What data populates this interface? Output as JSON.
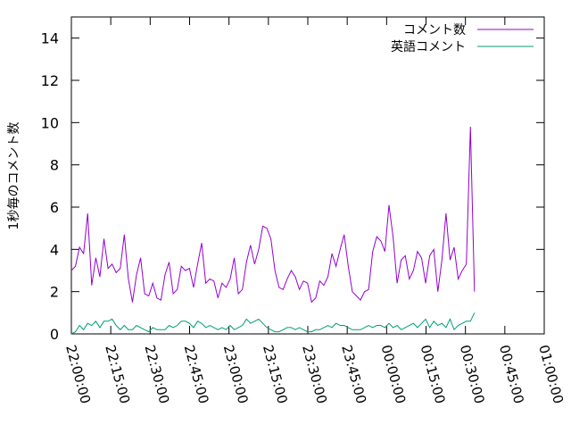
{
  "chart_data": {
    "type": "line",
    "title": "",
    "xlabel": "",
    "ylabel": "1秒毎のコメント数",
    "x_tick_labels": [
      "22:00:00",
      "22:15:00",
      "22:30:00",
      "22:45:00",
      "23:00:00",
      "23:15:00",
      "23:30:00",
      "23:45:00",
      "00:00:00",
      "00:15:00",
      "00:30:00",
      "00:45:00",
      "01:00:00"
    ],
    "y_tick_labels": [
      "0",
      "2",
      "4",
      "6",
      "8",
      "10",
      "12",
      "14"
    ],
    "xlim_minutes": [
      0,
      180
    ],
    "ylim": [
      0,
      15
    ],
    "grid": false,
    "legend_position": "top-right",
    "series": [
      {
        "name": "コメント数",
        "color": "#9400d3",
        "values": [
          [
            0,
            3.0
          ],
          [
            1.55,
            3.2
          ],
          [
            3.1,
            4.1
          ],
          [
            4.65,
            3.8
          ],
          [
            6.2,
            5.7
          ],
          [
            7.75,
            2.3
          ],
          [
            9.3,
            3.6
          ],
          [
            10.85,
            2.7
          ],
          [
            12.4,
            4.5
          ],
          [
            13.95,
            3.1
          ],
          [
            15.5,
            3.3
          ],
          [
            17.05,
            2.9
          ],
          [
            18.6,
            3.1
          ],
          [
            20.15,
            4.7
          ],
          [
            21.7,
            2.6
          ],
          [
            23.25,
            1.5
          ],
          [
            24.8,
            2.8
          ],
          [
            26.35,
            3.6
          ],
          [
            27.9,
            1.9
          ],
          [
            29.45,
            1.8
          ],
          [
            31.0,
            2.4
          ],
          [
            32.55,
            1.7
          ],
          [
            34.1,
            1.6
          ],
          [
            35.65,
            2.8
          ],
          [
            37.2,
            3.4
          ],
          [
            38.75,
            1.9
          ],
          [
            40.3,
            2.1
          ],
          [
            41.85,
            3.2
          ],
          [
            43.4,
            3.0
          ],
          [
            44.95,
            3.1
          ],
          [
            46.5,
            2.2
          ],
          [
            48.05,
            3.3
          ],
          [
            49.6,
            4.3
          ],
          [
            51.15,
            2.4
          ],
          [
            52.7,
            2.6
          ],
          [
            54.25,
            2.5
          ],
          [
            55.8,
            1.7
          ],
          [
            57.35,
            2.4
          ],
          [
            58.9,
            2.2
          ],
          [
            60.45,
            2.6
          ],
          [
            62.0,
            3.6
          ],
          [
            63.55,
            1.9
          ],
          [
            65.1,
            2.1
          ],
          [
            66.65,
            3.4
          ],
          [
            68.2,
            4.2
          ],
          [
            69.75,
            3.3
          ],
          [
            71.3,
            4.0
          ],
          [
            72.85,
            5.1
          ],
          [
            74.4,
            5.0
          ],
          [
            75.95,
            4.5
          ],
          [
            77.5,
            3.0
          ],
          [
            79.05,
            2.2
          ],
          [
            80.6,
            2.1
          ],
          [
            82.15,
            2.6
          ],
          [
            83.7,
            3.0
          ],
          [
            85.25,
            2.7
          ],
          [
            86.8,
            2.1
          ],
          [
            88.35,
            2.5
          ],
          [
            89.9,
            2.4
          ],
          [
            91.45,
            1.5
          ],
          [
            93.0,
            1.7
          ],
          [
            94.55,
            2.5
          ],
          [
            96.1,
            2.3
          ],
          [
            97.65,
            2.7
          ],
          [
            99.2,
            3.8
          ],
          [
            100.75,
            3.2
          ],
          [
            102.3,
            4.0
          ],
          [
            103.85,
            4.7
          ],
          [
            105.4,
            3.2
          ],
          [
            106.95,
            2.0
          ],
          [
            108.5,
            1.8
          ],
          [
            110.05,
            1.6
          ],
          [
            111.6,
            2.0
          ],
          [
            113.15,
            2.1
          ],
          [
            114.7,
            3.9
          ],
          [
            116.25,
            4.6
          ],
          [
            117.8,
            4.4
          ],
          [
            119.35,
            3.9
          ],
          [
            120.9,
            6.1
          ],
          [
            122.45,
            4.6
          ],
          [
            124.0,
            2.4
          ],
          [
            125.55,
            3.5
          ],
          [
            127.1,
            3.7
          ],
          [
            128.65,
            2.6
          ],
          [
            130.2,
            3.0
          ],
          [
            131.75,
            3.9
          ],
          [
            133.3,
            3.6
          ],
          [
            134.85,
            2.4
          ],
          [
            136.4,
            3.7
          ],
          [
            137.95,
            4.0
          ],
          [
            139.5,
            2.0
          ],
          [
            141.05,
            3.5
          ],
          [
            142.6,
            5.7
          ],
          [
            144.15,
            3.5
          ],
          [
            145.7,
            4.1
          ],
          [
            147.25,
            2.6
          ],
          [
            148.8,
            3.0
          ],
          [
            150.35,
            3.3
          ],
          [
            151.9,
            9.8
          ],
          [
            153.45,
            2.0
          ]
        ]
      },
      {
        "name": "英語コメント",
        "color": "#009e73",
        "values": [
          [
            0,
            0.0
          ],
          [
            1.55,
            0.1
          ],
          [
            3.1,
            0.4
          ],
          [
            4.65,
            0.2
          ],
          [
            6.2,
            0.5
          ],
          [
            7.75,
            0.4
          ],
          [
            9.3,
            0.6
          ],
          [
            10.85,
            0.3
          ],
          [
            12.4,
            0.6
          ],
          [
            13.95,
            0.6
          ],
          [
            15.5,
            0.7
          ],
          [
            17.05,
            0.4
          ],
          [
            18.6,
            0.2
          ],
          [
            20.15,
            0.4
          ],
          [
            21.7,
            0.2
          ],
          [
            23.25,
            0.2
          ],
          [
            24.8,
            0.4
          ],
          [
            26.35,
            0.3
          ],
          [
            27.9,
            0.2
          ],
          [
            29.45,
            0.1
          ],
          [
            31.0,
            0.3
          ],
          [
            32.55,
            0.2
          ],
          [
            34.1,
            0.2
          ],
          [
            35.65,
            0.2
          ],
          [
            37.2,
            0.4
          ],
          [
            38.75,
            0.3
          ],
          [
            40.3,
            0.4
          ],
          [
            41.85,
            0.6
          ],
          [
            43.4,
            0.6
          ],
          [
            44.95,
            0.5
          ],
          [
            46.5,
            0.3
          ],
          [
            48.05,
            0.6
          ],
          [
            49.6,
            0.5
          ],
          [
            51.15,
            0.3
          ],
          [
            52.7,
            0.4
          ],
          [
            54.25,
            0.3
          ],
          [
            55.8,
            0.2
          ],
          [
            57.35,
            0.3
          ],
          [
            58.9,
            0.2
          ],
          [
            60.45,
            0.4
          ],
          [
            62.0,
            0.2
          ],
          [
            63.55,
            0.3
          ],
          [
            65.1,
            0.4
          ],
          [
            66.65,
            0.7
          ],
          [
            68.2,
            0.5
          ],
          [
            69.75,
            0.6
          ],
          [
            71.3,
            0.7
          ],
          [
            72.85,
            0.5
          ],
          [
            74.4,
            0.3
          ],
          [
            75.95,
            0.2
          ],
          [
            77.5,
            0.1
          ],
          [
            79.05,
            0.1
          ],
          [
            80.6,
            0.2
          ],
          [
            82.15,
            0.3
          ],
          [
            83.7,
            0.3
          ],
          [
            85.25,
            0.2
          ],
          [
            86.8,
            0.3
          ],
          [
            88.35,
            0.2
          ],
          [
            89.9,
            0.1
          ],
          [
            91.45,
            0.1
          ],
          [
            93.0,
            0.2
          ],
          [
            94.55,
            0.2
          ],
          [
            96.1,
            0.3
          ],
          [
            97.65,
            0.4
          ],
          [
            99.2,
            0.3
          ],
          [
            100.75,
            0.5
          ],
          [
            102.3,
            0.4
          ],
          [
            103.85,
            0.4
          ],
          [
            105.4,
            0.3
          ],
          [
            106.95,
            0.2
          ],
          [
            108.5,
            0.2
          ],
          [
            110.05,
            0.2
          ],
          [
            111.6,
            0.3
          ],
          [
            113.15,
            0.4
          ],
          [
            114.7,
            0.3
          ],
          [
            116.25,
            0.4
          ],
          [
            117.8,
            0.4
          ],
          [
            119.35,
            0.3
          ],
          [
            120.9,
            0.5
          ],
          [
            122.45,
            0.3
          ],
          [
            124.0,
            0.4
          ],
          [
            125.55,
            0.2
          ],
          [
            127.1,
            0.3
          ],
          [
            128.65,
            0.4
          ],
          [
            130.2,
            0.5
          ],
          [
            131.75,
            0.3
          ],
          [
            133.3,
            0.5
          ],
          [
            134.85,
            0.7
          ],
          [
            136.4,
            0.3
          ],
          [
            137.95,
            0.6
          ],
          [
            139.5,
            0.4
          ],
          [
            141.05,
            0.5
          ],
          [
            142.6,
            0.3
          ],
          [
            144.15,
            0.7
          ],
          [
            145.7,
            0.2
          ],
          [
            147.25,
            0.4
          ],
          [
            148.8,
            0.5
          ],
          [
            150.35,
            0.6
          ],
          [
            151.9,
            0.6
          ],
          [
            153.45,
            1.0
          ]
        ]
      }
    ]
  }
}
